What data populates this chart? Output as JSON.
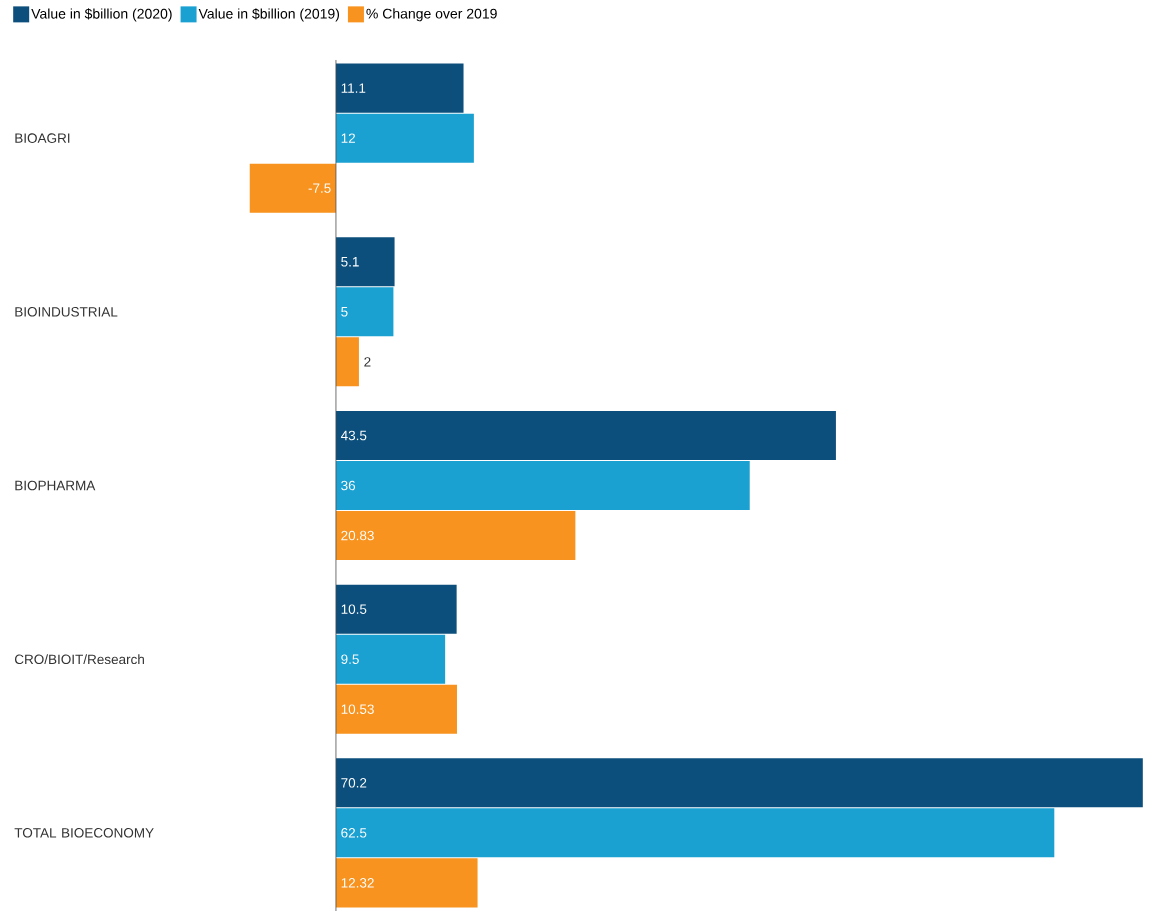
{
  "chart_data": {
    "type": "bar",
    "orientation": "horizontal",
    "categories": [
      "BIOAGRI",
      "BIOINDUSTRIAL",
      "BIOPHARMA",
      "CRO/BIOIT/Research",
      "TOTAL BIOECONOMY"
    ],
    "series": [
      {
        "name": "Value in $billion (2020)",
        "color": "#0d4f7c",
        "values": [
          11.1,
          5.1,
          43.5,
          10.5,
          70.2
        ]
      },
      {
        "name": "Value in $billion (2019)",
        "color": "#1ba0d2",
        "values": [
          12,
          5,
          36,
          9.5,
          62.5
        ]
      },
      {
        "name": "% Change over 2019",
        "color": "#f7931e",
        "values": [
          -7.5,
          2,
          20.83,
          10.53,
          12.32
        ]
      }
    ],
    "data_labels": true,
    "legend": "top left"
  }
}
